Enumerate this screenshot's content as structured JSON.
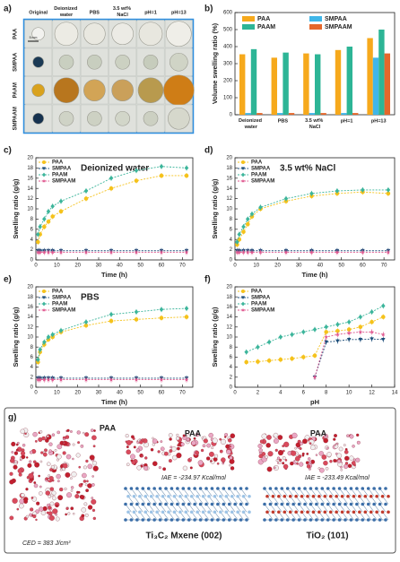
{
  "photo_panel": {
    "panel_label": "a)",
    "columns": [
      "Original",
      "Deionized water",
      "PBS",
      "3.5 wt% NaCl",
      "pH=1",
      "pH=13"
    ],
    "rows": [
      "PAA",
      "SMPAA",
      "PAAM",
      "SMPAAM"
    ],
    "scale": "5 mm"
  },
  "chart_data": [
    {
      "type": "bar",
      "panel_label": "b)",
      "y_label": "Volume swelling ratio (%)",
      "categories": [
        "Deionized water",
        "PBS",
        "3.5 wt% NaCl",
        "pH=1",
        "pH=13"
      ],
      "series": [
        {
          "name": "PAA",
          "color": "#f6a91c",
          "values": [
            355,
            335,
            360,
            380,
            450
          ]
        },
        {
          "name": "SMPAA",
          "color": "#3fb6e8",
          "values": [
            10,
            10,
            10,
            10,
            335
          ]
        },
        {
          "name": "PAAM",
          "color": "#2db596",
          "values": [
            385,
            365,
            355,
            400,
            500
          ]
        },
        {
          "name": "SMPAAM",
          "color": "#e5672b",
          "values": [
            10,
            10,
            10,
            10,
            360
          ]
        }
      ],
      "ylim": [
        0,
        600
      ],
      "yticks": [
        0,
        100,
        200,
        300,
        400,
        500,
        600
      ]
    },
    {
      "type": "line",
      "panel_label": "c)",
      "annotation": "Deionized water",
      "x_label": "Time (h)",
      "y_label": "Swelling ratio (g/g)",
      "x": [
        1,
        2,
        4,
        6,
        8,
        12,
        24,
        36,
        48,
        60,
        72
      ],
      "series": [
        {
          "name": "PAA",
          "color": "#f5c21b",
          "marker": "circle",
          "values": [
            3.5,
            5,
            6.5,
            7.5,
            8.5,
            9.5,
            12,
            14,
            15.5,
            16.5,
            16.5
          ]
        },
        {
          "name": "SMPAA",
          "color": "#1d4e7a",
          "marker": "triangle",
          "values": [
            1.8,
            1.8,
            1.8,
            1.8,
            1.8,
            1.8,
            1.8,
            1.8,
            1.8,
            1.8,
            1.8
          ]
        },
        {
          "name": "PAAM",
          "color": "#3cb59b",
          "marker": "diamond",
          "values": [
            5,
            6.5,
            8,
            9.5,
            10.5,
            11.5,
            13.5,
            16,
            17.5,
            18.3,
            18
          ]
        },
        {
          "name": "SMPAAM",
          "color": "#e0588f",
          "marker": "star",
          "values": [
            1.5,
            1.5,
            1.5,
            1.5,
            1.5,
            1.5,
            1.5,
            1.5,
            1.5,
            1.5,
            1.5
          ]
        }
      ],
      "xlim": [
        0,
        75
      ],
      "xticks": [
        0,
        10,
        20,
        30,
        40,
        50,
        60,
        70
      ],
      "ylim": [
        0,
        20
      ],
      "yticks": [
        0,
        2,
        4,
        6,
        8,
        10,
        12,
        14,
        16,
        18,
        20
      ]
    },
    {
      "type": "line",
      "panel_label": "d)",
      "annotation": "3.5 wt% NaCl",
      "x_label": "Time (h)",
      "y_label": "Swelling ratio (g/g)",
      "x": [
        1,
        2,
        4,
        6,
        8,
        12,
        24,
        36,
        48,
        60,
        72
      ],
      "series": [
        {
          "name": "PAA",
          "color": "#f5c21b",
          "marker": "circle",
          "values": [
            3,
            4,
            5.5,
            7,
            8.5,
            10,
            11.5,
            12.5,
            13,
            13.3,
            13
          ]
        },
        {
          "name": "SMPAA",
          "color": "#1d4e7a",
          "marker": "triangle",
          "values": [
            1.8,
            1.8,
            1.8,
            1.8,
            1.8,
            1.8,
            1.8,
            1.8,
            1.8,
            1.8,
            1.8
          ]
        },
        {
          "name": "PAAM",
          "color": "#3cb59b",
          "marker": "diamond",
          "values": [
            3.5,
            5,
            6.5,
            8,
            9,
            10.3,
            12,
            13,
            13.5,
            13.7,
            13.7
          ]
        },
        {
          "name": "SMPAAM",
          "color": "#e0588f",
          "marker": "star",
          "values": [
            1.5,
            1.5,
            1.5,
            1.5,
            1.5,
            1.5,
            1.5,
            1.5,
            1.5,
            1.5,
            1.5
          ]
        }
      ],
      "xlim": [
        0,
        75
      ],
      "xticks": [
        0,
        10,
        20,
        30,
        40,
        50,
        60,
        70
      ],
      "ylim": [
        0,
        20
      ],
      "yticks": [
        0,
        2,
        4,
        6,
        8,
        10,
        12,
        14,
        16,
        18,
        20
      ]
    },
    {
      "type": "line",
      "panel_label": "e)",
      "annotation": "PBS",
      "x_label": "Time (h)",
      "y_label": "Swelling ratio (g/g)",
      "x": [
        1,
        2,
        4,
        6,
        8,
        12,
        24,
        36,
        48,
        60,
        72
      ],
      "series": [
        {
          "name": "PAA",
          "color": "#f5c21b",
          "marker": "circle",
          "values": [
            5,
            7,
            8.5,
            9.5,
            10,
            11,
            12.3,
            13.2,
            13.5,
            13.8,
            14
          ]
        },
        {
          "name": "SMPAA",
          "color": "#1d4e7a",
          "marker": "triangle",
          "values": [
            1.8,
            1.8,
            1.8,
            1.8,
            1.8,
            1.8,
            1.8,
            1.8,
            1.8,
            1.8,
            1.8
          ]
        },
        {
          "name": "PAAM",
          "color": "#3cb59b",
          "marker": "diamond",
          "values": [
            5.5,
            7.5,
            9,
            10,
            10.5,
            11.3,
            13,
            14.5,
            15,
            15.5,
            15.7
          ]
        },
        {
          "name": "SMPAAM",
          "color": "#e0588f",
          "marker": "star",
          "values": [
            1.5,
            1.5,
            1.5,
            1.5,
            1.5,
            1.5,
            1.5,
            1.5,
            1.5,
            1.5,
            1.5
          ]
        }
      ],
      "xlim": [
        0,
        75
      ],
      "xticks": [
        0,
        10,
        20,
        30,
        40,
        50,
        60,
        70
      ],
      "ylim": [
        0,
        20
      ],
      "yticks": [
        0,
        2,
        4,
        6,
        8,
        10,
        12,
        14,
        16,
        18,
        20
      ]
    },
    {
      "type": "line",
      "panel_label": "f)",
      "x_label": "pH",
      "y_label": "Swelling ratio (g/g)",
      "x": [
        1,
        2,
        3,
        4,
        5,
        6,
        7,
        8,
        9,
        10,
        11,
        12,
        13
      ],
      "series": [
        {
          "name": "PAA",
          "color": "#f5c21b",
          "marker": "circle",
          "values": [
            5,
            5.1,
            5.3,
            5.5,
            5.7,
            6,
            6.3,
            11,
            11.2,
            11.5,
            12,
            13,
            14
          ]
        },
        {
          "name": "SMPAA",
          "color": "#1d4e7a",
          "marker": "triangle",
          "values": [
            null,
            null,
            null,
            null,
            null,
            null,
            2,
            9,
            9.2,
            9.5,
            9.5,
            9.6,
            9.5
          ]
        },
        {
          "name": "PAAM",
          "color": "#3cb59b",
          "marker": "diamond",
          "values": [
            7,
            8,
            9,
            10,
            10.5,
            11,
            11.5,
            12,
            12.5,
            13,
            14,
            15,
            16.2
          ]
        },
        {
          "name": "SMPAAM",
          "color": "#e0588f",
          "marker": "star",
          "values": [
            null,
            null,
            null,
            null,
            null,
            null,
            2,
            10,
            10.5,
            10.8,
            11,
            11,
            10.5
          ]
        }
      ],
      "xlim": [
        0,
        14
      ],
      "xticks": [
        0,
        2,
        4,
        6,
        8,
        10,
        12,
        14
      ],
      "ylim": [
        0,
        20
      ],
      "yticks": [
        0,
        2,
        4,
        6,
        8,
        10,
        12,
        14,
        16,
        18,
        20
      ]
    }
  ],
  "model_panel": {
    "panel_label": "g)",
    "models": [
      {
        "label": "PAA",
        "energy": "CED = 383 J/cm³"
      },
      {
        "label": "PAA",
        "energy": "IAE = -234.97 Kcal/mol",
        "substrate": "Ti₃C₂ Mxene (002)"
      },
      {
        "label": "PAA",
        "energy": "IAE = -233.49 Kcal/mol",
        "substrate": "TiO₂ (101)"
      }
    ]
  }
}
